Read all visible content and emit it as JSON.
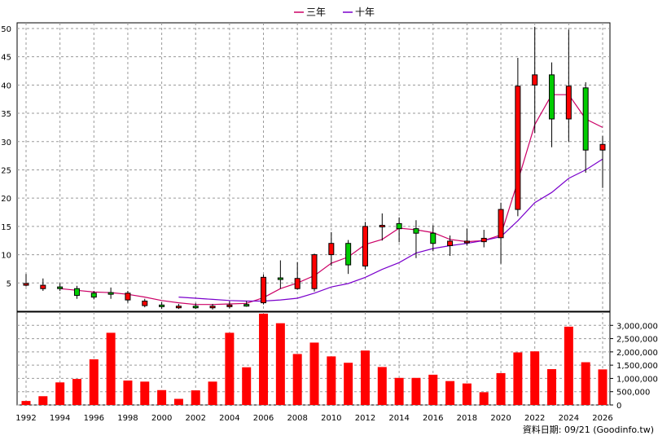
{
  "chart_data": [
    {
      "type": "candlestick",
      "xlim": [
        1992,
        2026
      ],
      "ylim": [
        0,
        51
      ],
      "x_ticks": [
        "1992",
        "1994",
        "1996",
        "1998",
        "2000",
        "2002",
        "2004",
        "2006",
        "2008",
        "2010",
        "2012",
        "2014",
        "2016",
        "2018",
        "2020",
        "2022",
        "2024",
        "2026"
      ],
      "y_ticks": [
        "5",
        "10",
        "15",
        "20",
        "25",
        "30",
        "35",
        "40",
        "45",
        "50"
      ],
      "grid": true,
      "legend": {
        "position": "top-center"
      },
      "candles": [
        {
          "year": 1992,
          "open": 4.6,
          "close": 4.9,
          "high": 6.6,
          "low": 4.4
        },
        {
          "year": 1993,
          "open": 4.0,
          "close": 4.6,
          "high": 5.8,
          "low": 3.6
        },
        {
          "year": 1994,
          "open": 4.3,
          "close": 4.0,
          "high": 5.0,
          "low": 3.6
        },
        {
          "year": 1995,
          "open": 4.0,
          "close": 2.8,
          "high": 4.5,
          "low": 2.2
        },
        {
          "year": 1996,
          "open": 3.2,
          "close": 2.5,
          "high": 3.6,
          "low": 2.1
        },
        {
          "year": 1997,
          "open": 3.3,
          "close": 3.0,
          "high": 4.2,
          "low": 2.2
        },
        {
          "year": 1998,
          "open": 2.0,
          "close": 3.2,
          "high": 3.6,
          "low": 1.5
        },
        {
          "year": 1999,
          "open": 1.0,
          "close": 1.8,
          "high": 2.2,
          "low": 0.7
        },
        {
          "year": 2000,
          "open": 1.1,
          "close": 0.9,
          "high": 1.6,
          "low": 0.4
        },
        {
          "year": 2001,
          "open": 0.8,
          "close": 0.9,
          "high": 1.3,
          "low": 0.4
        },
        {
          "year": 2002,
          "open": 0.9,
          "close": 0.7,
          "high": 1.4,
          "low": 0.4
        },
        {
          "year": 2003,
          "open": 0.8,
          "close": 0.9,
          "high": 1.3,
          "low": 0.3
        },
        {
          "year": 2004,
          "open": 0.9,
          "close": 1.1,
          "high": 1.8,
          "low": 0.5
        },
        {
          "year": 2005,
          "open": 1.2,
          "close": 1.1,
          "high": 1.8,
          "low": 0.8
        },
        {
          "year": 2006,
          "open": 1.5,
          "close": 6.0,
          "high": 6.5,
          "low": 1.2
        },
        {
          "year": 2007,
          "open": 5.9,
          "close": 5.7,
          "high": 9.0,
          "low": 4.0
        },
        {
          "year": 2008,
          "open": 4.0,
          "close": 5.8,
          "high": 8.7,
          "low": 3.8
        },
        {
          "year": 2009,
          "open": 4.0,
          "close": 10.0,
          "high": 10.2,
          "low": 3.5
        },
        {
          "year": 2010,
          "open": 10.0,
          "close": 12.0,
          "high": 14.0,
          "low": 8.0
        },
        {
          "year": 2011,
          "open": 12.0,
          "close": 8.2,
          "high": 12.6,
          "low": 6.6
        },
        {
          "year": 2012,
          "open": 8.0,
          "close": 15.0,
          "high": 15.8,
          "low": 7.4
        },
        {
          "year": 2013,
          "open": 15.2,
          "close": 15.2,
          "high": 17.3,
          "low": 12.5
        },
        {
          "year": 2014,
          "open": 15.5,
          "close": 14.6,
          "high": 16.6,
          "low": 12.2
        },
        {
          "year": 2015,
          "open": 14.6,
          "close": 13.8,
          "high": 16.1,
          "low": 9.4
        },
        {
          "year": 2016,
          "open": 13.8,
          "close": 12.0,
          "high": 15.2,
          "low": 10.6
        },
        {
          "year": 2017,
          "open": 11.6,
          "close": 12.4,
          "high": 13.4,
          "low": 9.8
        },
        {
          "year": 2018,
          "open": 12.4,
          "close": 12.4,
          "high": 14.6,
          "low": 11.6
        },
        {
          "year": 2019,
          "open": 12.3,
          "close": 12.9,
          "high": 14.4,
          "low": 11.3
        },
        {
          "year": 2020,
          "open": 13.0,
          "close": 18.0,
          "high": 19.2,
          "low": 8.4
        },
        {
          "year": 2021,
          "open": 18.0,
          "close": 39.8,
          "high": 44.8,
          "low": 16.8
        },
        {
          "year": 2022,
          "open": 40.0,
          "close": 41.8,
          "high": 50.3,
          "low": 31.5
        },
        {
          "year": 2023,
          "open": 41.8,
          "close": 34.0,
          "high": 44.0,
          "low": 29.0
        },
        {
          "year": 2024,
          "open": 34.0,
          "close": 39.8,
          "high": 49.8,
          "low": 30.0
        },
        {
          "year": 2025,
          "open": 39.5,
          "close": 28.5,
          "high": 40.5,
          "low": 24.5
        },
        {
          "year": 2026,
          "open": 28.5,
          "close": 29.5,
          "high": 31.0,
          "low": 21.8
        }
      ],
      "series": [
        {
          "name": "三年",
          "color": "#cc0066",
          "x": [
            1994,
            1995,
            1996,
            1997,
            1998,
            1999,
            2000,
            2001,
            2002,
            2003,
            2004,
            2005,
            2006,
            2007,
            2008,
            2009,
            2010,
            2011,
            2012,
            2013,
            2014,
            2015,
            2016,
            2017,
            2018,
            2019,
            2020,
            2021,
            2022,
            2023,
            2024,
            2025,
            2026
          ],
          "values": [
            4.0,
            3.7,
            3.4,
            3.3,
            3.0,
            2.5,
            1.9,
            1.5,
            1.2,
            1.2,
            1.3,
            1.4,
            2.4,
            4.0,
            5.0,
            6.3,
            8.5,
            9.6,
            11.8,
            12.7,
            14.7,
            14.4,
            13.9,
            12.7,
            12.3,
            12.5,
            13.5,
            23.0,
            33.0,
            38.3,
            38.3,
            34.0,
            32.5
          ]
        },
        {
          "name": "十年",
          "color": "#7a00cc",
          "x": [
            2001,
            2002,
            2003,
            2004,
            2005,
            2006,
            2007,
            2008,
            2009,
            2010,
            2011,
            2012,
            2013,
            2014,
            2015,
            2016,
            2017,
            2018,
            2019,
            2020,
            2021,
            2022,
            2023,
            2024,
            2025,
            2026
          ],
          "values": [
            2.5,
            2.3,
            2.1,
            1.9,
            1.8,
            1.8,
            2.0,
            2.3,
            3.2,
            4.3,
            4.9,
            6.0,
            7.4,
            8.6,
            10.3,
            11.1,
            11.6,
            12.0,
            12.5,
            13.2,
            16.0,
            19.2,
            21.0,
            23.5,
            25.0,
            26.9
          ]
        }
      ]
    },
    {
      "type": "bar",
      "color": "#ff0000",
      "ylim": [
        0,
        3500000
      ],
      "y_ticks": [
        "0",
        "500,000",
        "1,000,000",
        "1,500,000",
        "2,000,000",
        "2,500,000",
        "3,000,000"
      ],
      "categories": [
        "1992",
        "1993",
        "1994",
        "1995",
        "1996",
        "1997",
        "1998",
        "1999",
        "2000",
        "2001",
        "2002",
        "2003",
        "2004",
        "2005",
        "2006",
        "2007",
        "2008",
        "2009",
        "2010",
        "2011",
        "2012",
        "2013",
        "2014",
        "2015",
        "2016",
        "2017",
        "2018",
        "2019",
        "2020",
        "2021",
        "2022",
        "2023",
        "2024",
        "2025",
        "2026"
      ],
      "values": [
        150000,
        330000,
        850000,
        980000,
        1720000,
        2720000,
        920000,
        880000,
        560000,
        230000,
        550000,
        880000,
        2720000,
        1420000,
        3440000,
        3080000,
        1920000,
        2350000,
        1830000,
        1590000,
        2050000,
        1430000,
        1020000,
        1020000,
        1140000,
        900000,
        810000,
        480000,
        1200000,
        1980000,
        2020000,
        1350000,
        2950000,
        1610000,
        1340000
      ]
    }
  ],
  "footer": {
    "source": "資料日期: 09/21 (Goodinfo.tw)"
  }
}
